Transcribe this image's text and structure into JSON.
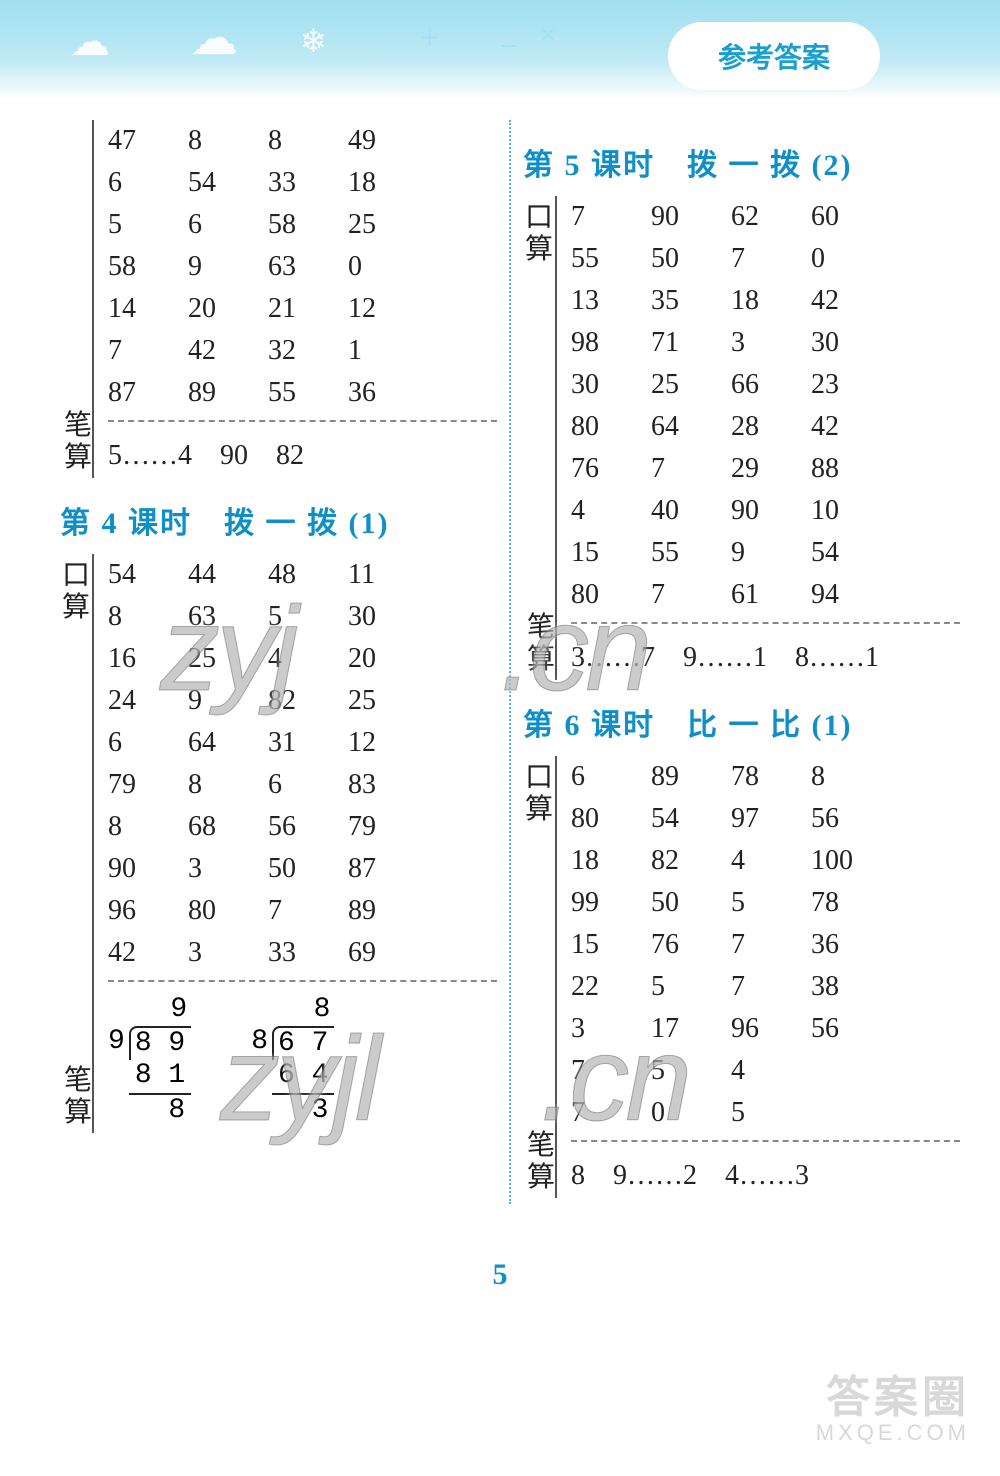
{
  "header_pill": "参考答案",
  "page_number": "5",
  "watermarks": {
    "a": "zyj",
    "b": ".cn",
    "c": "zyjl",
    "d": ".cn"
  },
  "footer": {
    "big": "答案圈",
    "small": "MXQE.COM"
  },
  "left": {
    "top_block": {
      "kousuan_rows": [
        [
          "47",
          "8",
          "8",
          "49"
        ],
        [
          "6",
          "54",
          "33",
          "18"
        ],
        [
          "5",
          "6",
          "58",
          "25"
        ],
        [
          "58",
          "9",
          "63",
          "0"
        ],
        [
          "14",
          "20",
          "21",
          "12"
        ],
        [
          "7",
          "42",
          "32",
          "1"
        ],
        [
          "87",
          "89",
          "55",
          "36"
        ]
      ],
      "bisuan_text": "5……4　90　82"
    },
    "sec4": {
      "title": "第 4 课时　拨 一 拨 (1)",
      "kousuan_rows": [
        [
          "54",
          "44",
          "48",
          "11"
        ],
        [
          "8",
          "63",
          "5",
          "30"
        ],
        [
          "16",
          "25",
          "4",
          "20"
        ],
        [
          "24",
          "9",
          "82",
          "25"
        ],
        [
          "6",
          "64",
          "31",
          "12"
        ],
        [
          "79",
          "8",
          "6",
          "83"
        ],
        [
          "8",
          "68",
          "56",
          "79"
        ],
        [
          "90",
          "3",
          "50",
          "87"
        ],
        [
          "96",
          "80",
          "7",
          "89"
        ],
        [
          "42",
          "3",
          "33",
          "69"
        ]
      ],
      "longdiv": [
        {
          "q": "9",
          "dvs": "9",
          "dvd": "8 9",
          "sub": "8 1",
          "rem": "8"
        },
        {
          "q": "8",
          "dvs": "8",
          "dvd": "6 7",
          "sub": "6 4",
          "rem": "3"
        }
      ]
    }
  },
  "right": {
    "sec5": {
      "title": "第 5 课时　拨 一 拨 (2)",
      "kousuan_rows": [
        [
          "7",
          "90",
          "62",
          "60"
        ],
        [
          "55",
          "50",
          "7",
          "0"
        ],
        [
          "13",
          "35",
          "18",
          "42"
        ],
        [
          "98",
          "71",
          "3",
          "30"
        ],
        [
          "30",
          "25",
          "66",
          "23"
        ],
        [
          "80",
          "64",
          "28",
          "42"
        ],
        [
          "76",
          "7",
          "29",
          "88"
        ],
        [
          "4",
          "40",
          "90",
          "10"
        ],
        [
          "15",
          "55",
          "9",
          "54"
        ],
        [
          "80",
          "7",
          "61",
          "94"
        ]
      ],
      "bisuan_text": "3……7　9……1　8……1"
    },
    "sec6": {
      "title": "第 6 课时　比 一 比 (1)",
      "kousuan_rows": [
        [
          "6",
          "89",
          "78",
          "8"
        ],
        [
          "80",
          "54",
          "97",
          "56"
        ],
        [
          "18",
          "82",
          "4",
          "100"
        ],
        [
          "99",
          "50",
          "5",
          "78"
        ],
        [
          "15",
          "76",
          "7",
          "36"
        ],
        [
          "22",
          "5",
          "7",
          "38"
        ],
        [
          "3",
          "17",
          "96",
          "56"
        ],
        [
          "7",
          "5",
          "4",
          ""
        ],
        [
          "7",
          "0",
          "5",
          ""
        ]
      ],
      "bisuan_text": "8　9……2　4……3"
    }
  },
  "labels": {
    "kousuan1": "口",
    "kousuan2": "算",
    "bisuan1": "笔",
    "bisuan2": "算"
  }
}
